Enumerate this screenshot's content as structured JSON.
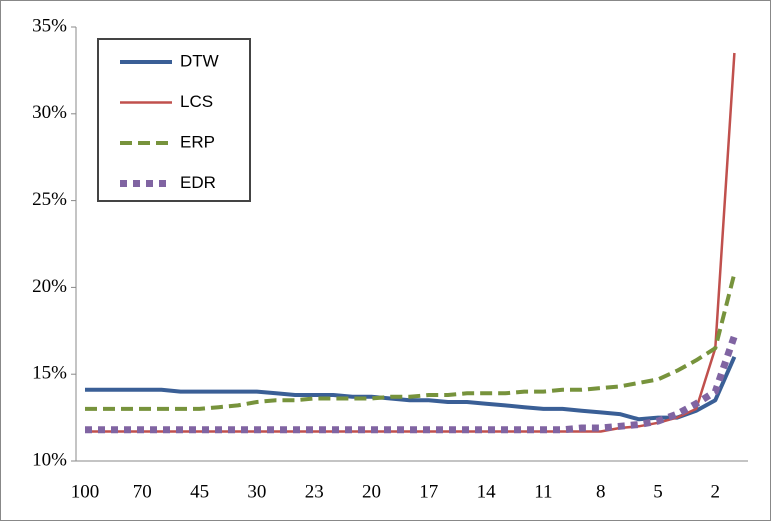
{
  "chart_data": {
    "type": "line",
    "categories": [
      100,
      null,
      null,
      70,
      null,
      null,
      45,
      null,
      null,
      30,
      null,
      null,
      23,
      null,
      null,
      20,
      null,
      null,
      17,
      null,
      null,
      14,
      null,
      null,
      11,
      null,
      null,
      8,
      null,
      null,
      5,
      null,
      null,
      2,
      null
    ],
    "series": [
      {
        "name": "DTW",
        "color": "#3a5f96",
        "style": "solid",
        "width": 4,
        "values": [
          14.1,
          14.1,
          14.1,
          14.1,
          14.1,
          14.0,
          14.0,
          14.0,
          14.0,
          14.0,
          13.9,
          13.8,
          13.8,
          13.8,
          13.7,
          13.7,
          13.6,
          13.5,
          13.5,
          13.4,
          13.4,
          13.3,
          13.2,
          13.1,
          13.0,
          13.0,
          12.9,
          12.8,
          12.7,
          12.4,
          12.5,
          12.5,
          12.9,
          13.5,
          16.0
        ]
      },
      {
        "name": "LCS",
        "color": "#c0504d",
        "style": "solid",
        "width": 2.5,
        "values": [
          11.7,
          11.7,
          11.7,
          11.7,
          11.7,
          11.7,
          11.7,
          11.7,
          11.7,
          11.7,
          11.7,
          11.7,
          11.7,
          11.7,
          11.7,
          11.7,
          11.7,
          11.7,
          11.7,
          11.7,
          11.7,
          11.7,
          11.7,
          11.7,
          11.7,
          11.7,
          11.7,
          11.7,
          11.9,
          12.0,
          12.2,
          12.5,
          13.0,
          16.5,
          33.5
        ]
      },
      {
        "name": "ERP",
        "color": "#77933c",
        "style": "dashed",
        "width": 4,
        "values": [
          13.0,
          13.0,
          13.0,
          13.0,
          13.0,
          13.0,
          13.0,
          13.1,
          13.2,
          13.4,
          13.5,
          13.5,
          13.6,
          13.6,
          13.6,
          13.6,
          13.7,
          13.7,
          13.8,
          13.8,
          13.9,
          13.9,
          13.9,
          14.0,
          14.0,
          14.1,
          14.1,
          14.2,
          14.3,
          14.5,
          14.7,
          15.2,
          15.8,
          16.5,
          20.8
        ]
      },
      {
        "name": "EDR",
        "color": "#8064a2",
        "style": "dotted",
        "width": 7,
        "values": [
          11.8,
          11.8,
          11.8,
          11.8,
          11.8,
          11.8,
          11.8,
          11.8,
          11.8,
          11.8,
          11.8,
          11.8,
          11.8,
          11.8,
          11.8,
          11.8,
          11.8,
          11.8,
          11.8,
          11.8,
          11.8,
          11.8,
          11.8,
          11.8,
          11.8,
          11.8,
          11.9,
          11.9,
          12.0,
          12.1,
          12.3,
          12.7,
          13.3,
          14.0,
          17.2
        ]
      }
    ],
    "ylim": [
      10,
      35
    ],
    "yticks": [
      {
        "value": 10,
        "label": "10%"
      },
      {
        "value": 15,
        "label": "15%"
      },
      {
        "value": 20,
        "label": "20%"
      },
      {
        "value": 25,
        "label": "25%"
      },
      {
        "value": 30,
        "label": "30%"
      },
      {
        "value": 35,
        "label": "35%"
      }
    ],
    "legend": "upper-left",
    "grid": false
  }
}
